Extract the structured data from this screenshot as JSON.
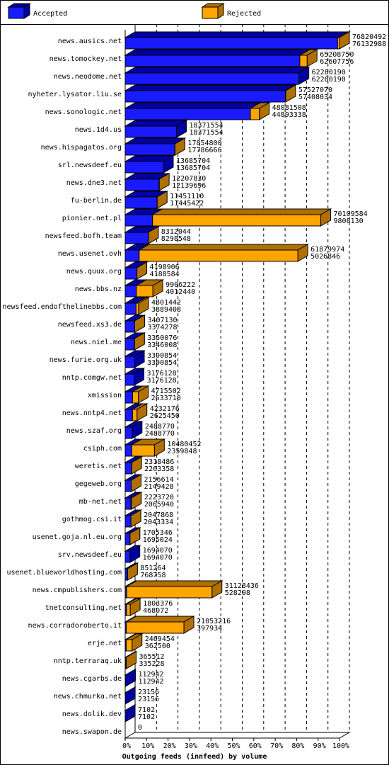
{
  "chart_data": {
    "type": "bar3d",
    "title": "Outgoing feeds (innfeed) by volume",
    "categories": [
      "news.ausics.net",
      "news.tomockey.net",
      "news.neodome.net",
      "nyheter.lysator.liu.se",
      "news.sonologic.net",
      "news.1d4.us",
      "news.hispagatos.org",
      "srl.newsdeef.eu",
      "news.dne3.net",
      "fu-berlin.de",
      "pionier.net.pl",
      "newsfeed.bofh.team",
      "news.usenet.ovh",
      "news.quux.org",
      "news.bbs.nz",
      "newsfeed.endofthelinebbs.com",
      "newsfeed.xs3.de",
      "news.niel.me",
      "news.furie.org.uk",
      "nntp.comgw.net",
      "xmission",
      "news.nntp4.net",
      "news.szaf.org",
      "csiph.com",
      "weretis.net",
      "gegeweb.org",
      "mb-net.net",
      "gothmog.csi.it",
      "usenet.goja.nl.eu.org",
      "srv.newsdeef.eu",
      "usenet.blueworldhosting.com",
      "news.cmpublishers.com",
      "tnetconsulting.net",
      "news.corradoroberto.it",
      "erje.net",
      "nntp.terraraq.uk",
      "news.cgarbs.de",
      "news.chmurka.net",
      "news.dolik.dev",
      "news.swapon.de"
    ],
    "totals": [
      76820492,
      65208750,
      62280190,
      57527070,
      48081508,
      18371554,
      17854800,
      13685704,
      12207830,
      11451110,
      70109584,
      8312044,
      61879974,
      4198906,
      9906222,
      4801442,
      3407130,
      3350076,
      3300854,
      3176128,
      4715502,
      4232176,
      2488770,
      10480452,
      2318486,
      2156614,
      2223720,
      2047868,
      1705346,
      1694070,
      851264,
      31128436,
      1803376,
      21053216,
      2469454,
      365512,
      112942,
      23156,
      7102,
      0
    ],
    "series": [
      {
        "name": "Accepted",
        "color": "#1a1aff",
        "values": [
          76132988,
          62607756,
          62280190,
          57408034,
          44893338,
          18371554,
          17786666,
          13685704,
          12139696,
          11445422,
          9808130,
          8298548,
          5026846,
          4188584,
          4012440,
          3889408,
          3374278,
          3346008,
          3300854,
          3176128,
          2633710,
          2625450,
          2488770,
          2359848,
          2263358,
          2149428,
          2065940,
          2043334,
          1695024,
          1694070,
          768758,
          528298,
          468072,
          397934,
          362500,
          335228,
          112942,
          23156,
          7102,
          null
        ]
      },
      {
        "name": "Rejected",
        "color": "#ffa500"
      }
    ],
    "xlim": [
      0,
      76820492
    ],
    "xticks": [
      {
        "value": 0,
        "label": "0%"
      },
      {
        "value": 7682049.2,
        "label": "10%"
      },
      {
        "value": 15364098.4,
        "label": "20%"
      },
      {
        "value": 23046147.6,
        "label": "30%"
      },
      {
        "value": 30728196.8,
        "label": "40%"
      },
      {
        "value": 38410246,
        "label": "50%"
      },
      {
        "value": 46092295.2,
        "label": "60%"
      },
      {
        "value": 53774344.4,
        "label": "70%"
      },
      {
        "value": 61456393.6,
        "label": "80%"
      },
      {
        "value": 69138442.8,
        "label": "90%"
      },
      {
        "value": 76820492,
        "label": "100%"
      }
    ],
    "grid": true
  }
}
